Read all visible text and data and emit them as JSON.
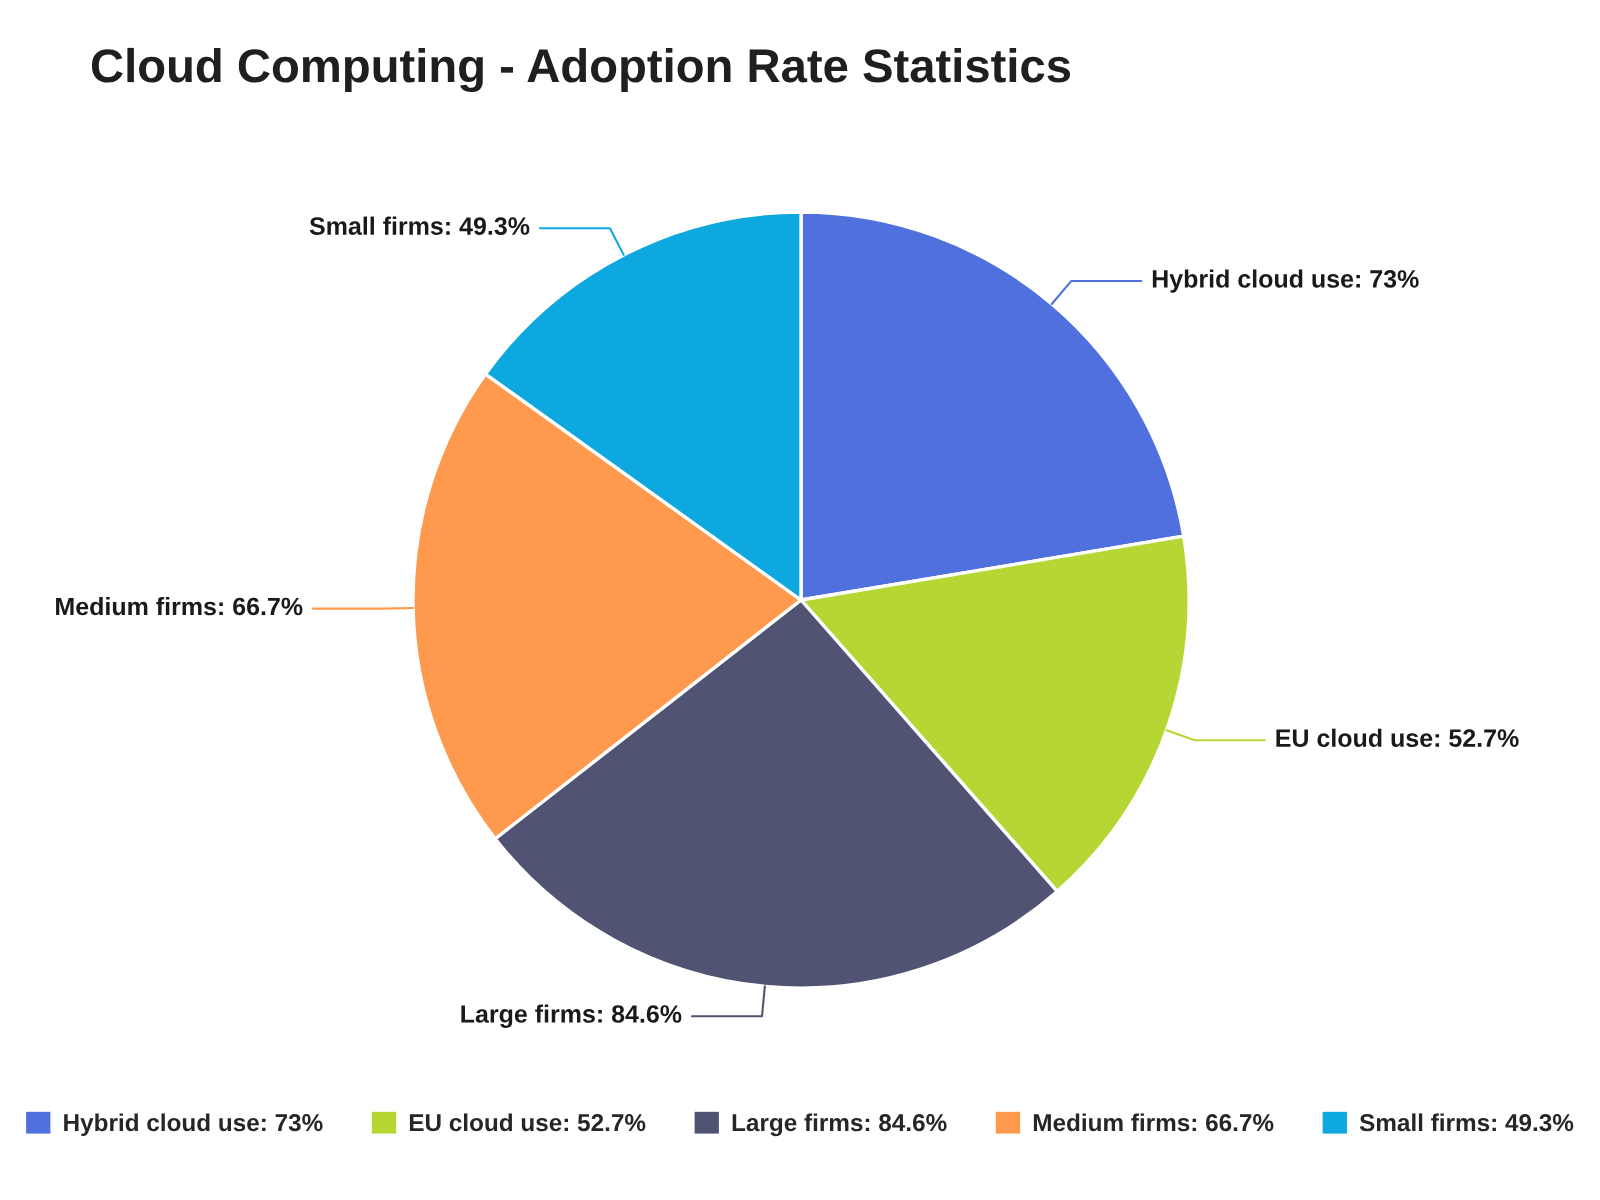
{
  "chart_data": {
    "type": "pie",
    "title": "Cloud Computing - Adoption Rate Statistics",
    "categories": [
      "Hybrid cloud use: 73%",
      "EU cloud use: 52.7%",
      "Large firms: 84.6%",
      "Medium firms: 66.7%",
      "Small firms: 49.3%"
    ],
    "values": [
      73,
      52.7,
      84.6,
      66.7,
      49.3
    ],
    "colors": [
      "#5070dd",
      "#b6d634",
      "#505372",
      "#ff994d",
      "#0ca8df"
    ],
    "value_labels": [
      "Hybrid cloud use: 73%",
      "EU cloud use: 52.7%",
      "Large firms: 84.6%",
      "Medium firms: 66.7%",
      "Small firms: 49.3%"
    ],
    "legend": "bottom"
  }
}
